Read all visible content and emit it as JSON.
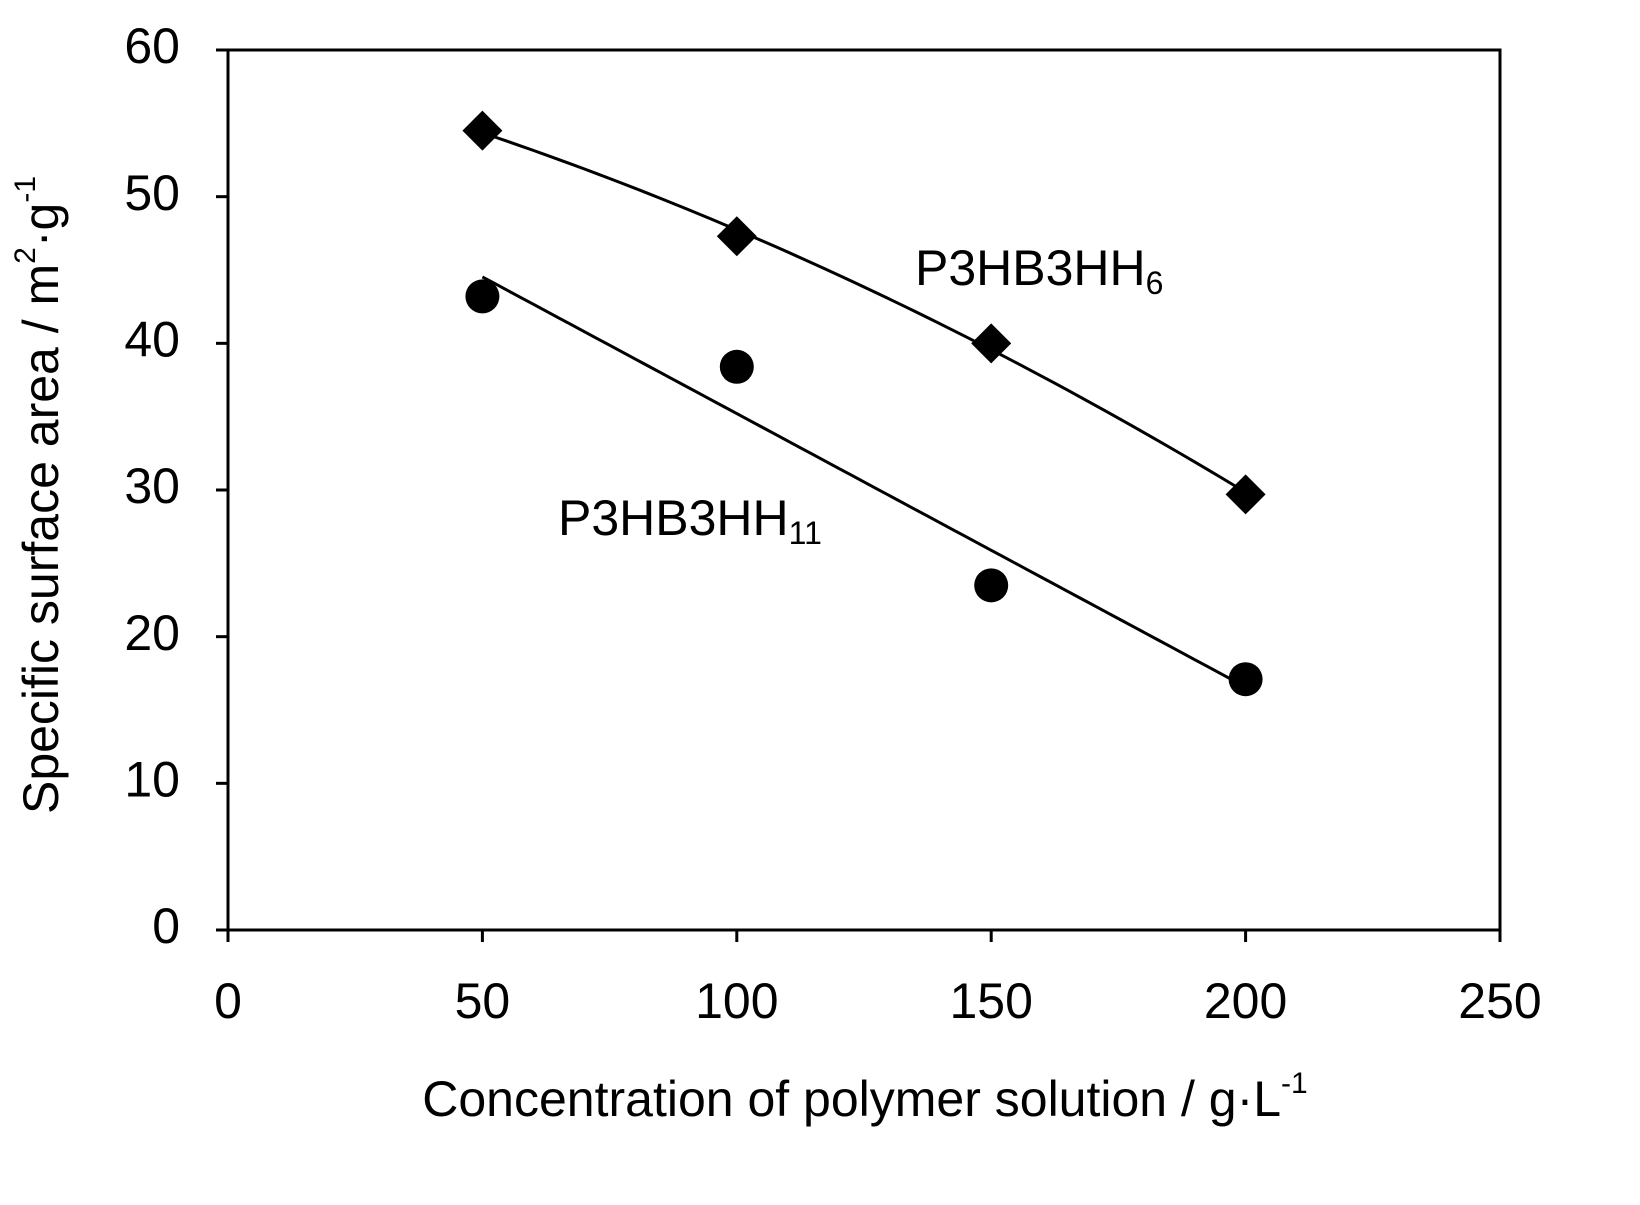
{
  "chart_data": {
    "type": "scatter",
    "xlabel": [
      "Concentration of polymer solution / g·L",
      "-1"
    ],
    "ylabel": [
      "Specific surface area / m",
      "2",
      "·g",
      "-1"
    ],
    "xlim": [
      0,
      250
    ],
    "xticks": [
      0,
      50,
      100,
      150,
      200,
      250
    ],
    "ylim": [
      0,
      60
    ],
    "yticks": [
      0,
      10,
      20,
      30,
      40,
      50,
      60
    ],
    "grid": false,
    "series": [
      {
        "name": "P3HB3HH",
        "name_sub": "6",
        "marker": "diamond",
        "color": "#000000",
        "trendline": "quadratic",
        "x": [
          50,
          100,
          150,
          200
        ],
        "values": [
          54.5,
          47.3,
          40.0,
          29.7
        ]
      },
      {
        "name": "P3HB3HH",
        "name_sub": "11",
        "marker": "circle",
        "color": "#000000",
        "trendline": "linear",
        "x": [
          50,
          100,
          150,
          200
        ],
        "values": [
          43.2,
          38.4,
          23.5,
          17.1
        ]
      }
    ]
  }
}
